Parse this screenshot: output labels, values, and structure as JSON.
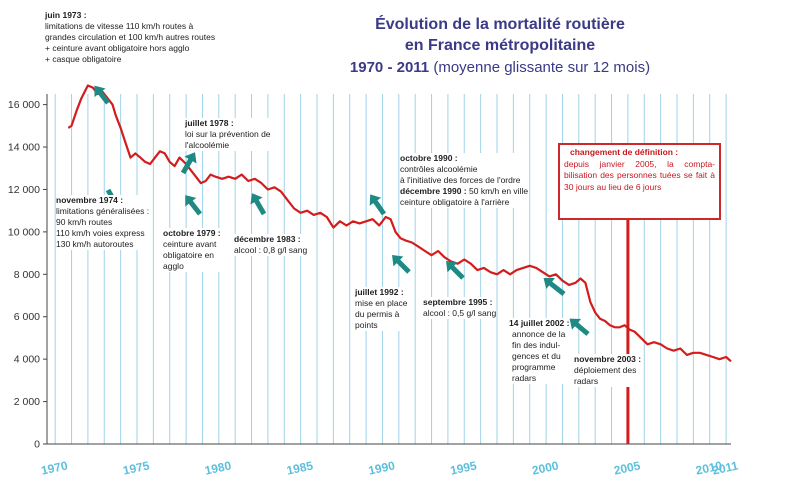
{
  "title": {
    "line1": "Évolution de la mortalité routière",
    "line2": "en France métropolitaine",
    "line3_bold": "1970 - 2011",
    "line3_rest": "(moyenne glissante sur 12 mois)"
  },
  "colors": {
    "curve": "#d41c1c",
    "grid": "#9fd3e8",
    "xtick": "#5cc0dc",
    "arrow": "#1f8a84",
    "title": "#3a3a86",
    "marker": "#d41c1c"
  },
  "annotations": {
    "a1973": {
      "head": "juin 1973 :",
      "lines": [
        "limitations de vitesse 110 km/h routes à",
        "grandes circulation et 100 km/h autres routes",
        "+ ceinture avant obligatoire hors agglo",
        "+ casque obligatoire"
      ]
    },
    "a1974": {
      "head": "novembre 1974 :",
      "lines": [
        "limitations généralisées :",
        "90 km/h routes",
        "110 km/h voies express",
        "130 km/h autoroutes"
      ]
    },
    "a1978": {
      "head": "juillet 1978 :",
      "lines": [
        "loi sur la prévention de",
        "l'alcoolémie"
      ]
    },
    "a1979": {
      "head": "octobre 1979 :",
      "lines": [
        "ceinture avant",
        "obligatoire en",
        "agglo"
      ]
    },
    "a1983": {
      "head": "décembre 1983 :",
      "lines": [
        "alcool : 0,8 g/l sang"
      ]
    },
    "a1990": {
      "head": "octobre 1990 :",
      "lines": [
        "contrôles alcoolémie",
        "à l'initiative des forces de l'ordre"
      ],
      "head2": "décembre 1990 :",
      "line2": "50 km/h en ville",
      "lines2": [
        "ceinture  obligatoire à l'arrière"
      ]
    },
    "a1992": {
      "head": "juillet 1992 :",
      "lines": [
        "mise en place",
        "du permis à",
        "points"
      ]
    },
    "a1995": {
      "head": "septembre 1995 :",
      "lines": [
        "alcool : 0,5 g/l sang"
      ]
    },
    "a2002": {
      "head": "14 juillet 2002 :",
      "lines": [
        "annonce de la",
        "fin des indul-",
        "gences et du",
        "programme",
        "radars"
      ]
    },
    "a2003": {
      "head": "novembre 2003 :",
      "lines": [
        "déploiement des",
        "radars"
      ]
    }
  },
  "redbox": {
    "head": "changement de définition :",
    "body": "depuis janvier 2005, la compta- bilisation  des personnes tuées se fait à 30 jours au lieu de 6 jours"
  },
  "chart_data": {
    "type": "line",
    "title": "Évolution de la mortalité routière en France métropolitaine 1970 - 2011 (moyenne glissante sur 12 mois)",
    "xlabel": "",
    "ylabel": "",
    "xlim": [
      1969.5,
      2011.3
    ],
    "ylim": [
      0,
      16500
    ],
    "xticks": [
      1970,
      1975,
      1980,
      1985,
      1990,
      1995,
      2000,
      2005,
      2010,
      2011
    ],
    "yticks": [
      0,
      2000,
      4000,
      6000,
      8000,
      10000,
      12000,
      14000,
      16000
    ],
    "ytick_labels": [
      "0",
      "2 000",
      "4 000",
      "6 000",
      "8 000",
      "10 000",
      "12 000",
      "14 000",
      "16 000"
    ],
    "grid": "vertical-yearly",
    "series": [
      {
        "name": "",
        "x": [
          1970.8,
          1971.0,
          1971.3,
          1971.6,
          1972.0,
          1972.3,
          1972.6,
          1972.9,
          1973.2,
          1973.5,
          1973.7,
          1974.0,
          1974.3,
          1974.6,
          1974.9,
          1975.2,
          1975.5,
          1975.8,
          1976.1,
          1976.4,
          1976.7,
          1977.0,
          1977.3,
          1977.6,
          1978.0,
          1978.3,
          1978.6,
          1978.9,
          1979.2,
          1979.5,
          1979.8,
          1980.2,
          1980.6,
          1981.0,
          1981.4,
          1981.8,
          1982.2,
          1982.6,
          1983.0,
          1983.4,
          1983.8,
          1984.2,
          1984.6,
          1985.0,
          1985.4,
          1985.8,
          1986.2,
          1986.6,
          1987.0,
          1987.4,
          1987.8,
          1988.2,
          1988.6,
          1989.0,
          1989.4,
          1989.8,
          1990.2,
          1990.5,
          1990.8,
          1991.1,
          1991.4,
          1991.8,
          1992.2,
          1992.6,
          1993.0,
          1993.4,
          1993.8,
          1994.2,
          1994.6,
          1995.0,
          1995.4,
          1995.8,
          1996.2,
          1996.6,
          1997.0,
          1997.4,
          1997.8,
          1998.2,
          1998.6,
          1999.0,
          1999.4,
          1999.8,
          2000.2,
          2000.6,
          2001.0,
          2001.4,
          2001.8,
          2002.1,
          2002.4,
          2002.7,
          2003.0,
          2003.3,
          2003.6,
          2003.9,
          2004.2,
          2004.5,
          2004.8,
          2005.1,
          2005.4,
          2005.8,
          2006.2,
          2006.6,
          2007.0,
          2007.4,
          2007.8,
          2008.2,
          2008.6,
          2009.0,
          2009.4,
          2009.8,
          2010.2,
          2010.6,
          2011.0,
          2011.3
        ],
        "y": [
          14900,
          15000,
          15700,
          16300,
          16900,
          16800,
          16500,
          16600,
          16300,
          16000,
          15500,
          14900,
          14200,
          13500,
          13700,
          13500,
          13300,
          13200,
          13500,
          13800,
          13700,
          13300,
          13100,
          13500,
          13200,
          12900,
          12600,
          12300,
          12400,
          12700,
          12600,
          12500,
          12600,
          12500,
          12700,
          12400,
          12500,
          12300,
          12000,
          12100,
          11900,
          11500,
          11100,
          10900,
          11000,
          10800,
          10900,
          10700,
          10200,
          10500,
          10300,
          10500,
          10400,
          10500,
          10600,
          10300,
          10700,
          10600,
          10000,
          9700,
          9600,
          9500,
          9300,
          9100,
          8900,
          9100,
          8800,
          8600,
          8500,
          8700,
          8500,
          8200,
          8300,
          8100,
          8000,
          8200,
          8000,
          8200,
          8300,
          8400,
          8300,
          8100,
          7900,
          8000,
          7700,
          7500,
          7600,
          7800,
          7600,
          6700,
          6200,
          5900,
          5800,
          5600,
          5500,
          5500,
          5600,
          5400,
          5300,
          5000,
          4700,
          4800,
          4700,
          4500,
          4400,
          4500,
          4200,
          4300,
          4300,
          4200,
          4100,
          4000,
          4100,
          3900
        ]
      }
    ],
    "markers": [
      {
        "label": "changement de définition",
        "x": 2005.0
      }
    ]
  }
}
